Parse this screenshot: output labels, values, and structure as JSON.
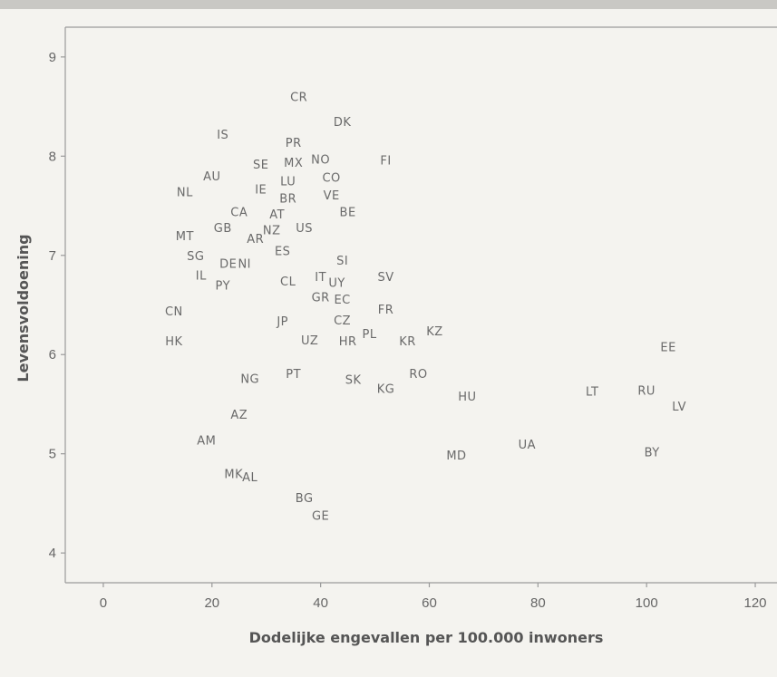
{
  "chart_data": {
    "type": "scatter",
    "xlabel": "Dodelijke engevallen per 100.000 inwoners",
    "ylabel": "Levensvoldoening",
    "xlim": [
      -7,
      124
    ],
    "ylim": [
      3.7,
      9.3
    ],
    "xticks": [
      0,
      20,
      40,
      60,
      80,
      100,
      120
    ],
    "yticks": [
      4,
      5,
      6,
      7,
      8,
      9
    ],
    "grid": false,
    "points": [
      {
        "label": "CR",
        "x": 36,
        "y": 8.6
      },
      {
        "label": "DK",
        "x": 44,
        "y": 8.35
      },
      {
        "label": "IS",
        "x": 22,
        "y": 8.22
      },
      {
        "label": "PR",
        "x": 35,
        "y": 8.14
      },
      {
        "label": "NO",
        "x": 40,
        "y": 7.97
      },
      {
        "label": "FI",
        "x": 52,
        "y": 7.96
      },
      {
        "label": "MX",
        "x": 35,
        "y": 7.94
      },
      {
        "label": "SE",
        "x": 29,
        "y": 7.92
      },
      {
        "label": "AU",
        "x": 20,
        "y": 7.8
      },
      {
        "label": "CO",
        "x": 42,
        "y": 7.79
      },
      {
        "label": "LU",
        "x": 34,
        "y": 7.75
      },
      {
        "label": "IE",
        "x": 29,
        "y": 7.67
      },
      {
        "label": "NL",
        "x": 15,
        "y": 7.64
      },
      {
        "label": "VE",
        "x": 42,
        "y": 7.61
      },
      {
        "label": "BR",
        "x": 34,
        "y": 7.58
      },
      {
        "label": "CA",
        "x": 25,
        "y": 7.44
      },
      {
        "label": "BE",
        "x": 45,
        "y": 7.44
      },
      {
        "label": "AT",
        "x": 32,
        "y": 7.42
      },
      {
        "label": "US",
        "x": 37,
        "y": 7.28
      },
      {
        "label": "GB",
        "x": 22,
        "y": 7.28
      },
      {
        "label": "NZ",
        "x": 31,
        "y": 7.26
      },
      {
        "label": "MT",
        "x": 15,
        "y": 7.2
      },
      {
        "label": "AR",
        "x": 28,
        "y": 7.17
      },
      {
        "label": "ES",
        "x": 33,
        "y": 7.05
      },
      {
        "label": "SG",
        "x": 17,
        "y": 7.0
      },
      {
        "label": "SI",
        "x": 44,
        "y": 6.95
      },
      {
        "label": "DE",
        "x": 23,
        "y": 6.92
      },
      {
        "label": "NI",
        "x": 26,
        "y": 6.92
      },
      {
        "label": "IL",
        "x": 18,
        "y": 6.8
      },
      {
        "label": "SV",
        "x": 52,
        "y": 6.79
      },
      {
        "label": "IT",
        "x": 40,
        "y": 6.79
      },
      {
        "label": "CL",
        "x": 34,
        "y": 6.74
      },
      {
        "label": "UY",
        "x": 43,
        "y": 6.73
      },
      {
        "label": "PY",
        "x": 22,
        "y": 6.7
      },
      {
        "label": "GR",
        "x": 40,
        "y": 6.58
      },
      {
        "label": "EC",
        "x": 44,
        "y": 6.56
      },
      {
        "label": "CN",
        "x": 13,
        "y": 6.44
      },
      {
        "label": "FR",
        "x": 52,
        "y": 6.46
      },
      {
        "label": "CZ",
        "x": 44,
        "y": 6.35
      },
      {
        "label": "JP",
        "x": 33,
        "y": 6.34
      },
      {
        "label": "KZ",
        "x": 61,
        "y": 6.24
      },
      {
        "label": "PL",
        "x": 49,
        "y": 6.21
      },
      {
        "label": "UZ",
        "x": 38,
        "y": 6.15
      },
      {
        "label": "HR",
        "x": 45,
        "y": 6.14
      },
      {
        "label": "HK",
        "x": 13,
        "y": 6.14
      },
      {
        "label": "KR",
        "x": 56,
        "y": 6.14
      },
      {
        "label": "EE",
        "x": 104,
        "y": 6.08
      },
      {
        "label": "RO",
        "x": 58,
        "y": 5.81
      },
      {
        "label": "PT",
        "x": 35,
        "y": 5.81
      },
      {
        "label": "NG",
        "x": 27,
        "y": 5.76
      },
      {
        "label": "SK",
        "x": 46,
        "y": 5.75
      },
      {
        "label": "KG",
        "x": 52,
        "y": 5.66
      },
      {
        "label": "LT",
        "x": 90,
        "y": 5.63
      },
      {
        "label": "RU",
        "x": 100,
        "y": 5.64
      },
      {
        "label": "HU",
        "x": 67,
        "y": 5.58
      },
      {
        "label": "LV",
        "x": 106,
        "y": 5.48
      },
      {
        "label": "AZ",
        "x": 25,
        "y": 5.4
      },
      {
        "label": "AM",
        "x": 19,
        "y": 5.14
      },
      {
        "label": "UA",
        "x": 78,
        "y": 5.1
      },
      {
        "label": "BY",
        "x": 101,
        "y": 5.02
      },
      {
        "label": "MD",
        "x": 65,
        "y": 4.99
      },
      {
        "label": "MK",
        "x": 24,
        "y": 4.8
      },
      {
        "label": "AL",
        "x": 27,
        "y": 4.77
      },
      {
        "label": "BG",
        "x": 37,
        "y": 4.56
      },
      {
        "label": "GE",
        "x": 40,
        "y": 4.38
      }
    ]
  }
}
